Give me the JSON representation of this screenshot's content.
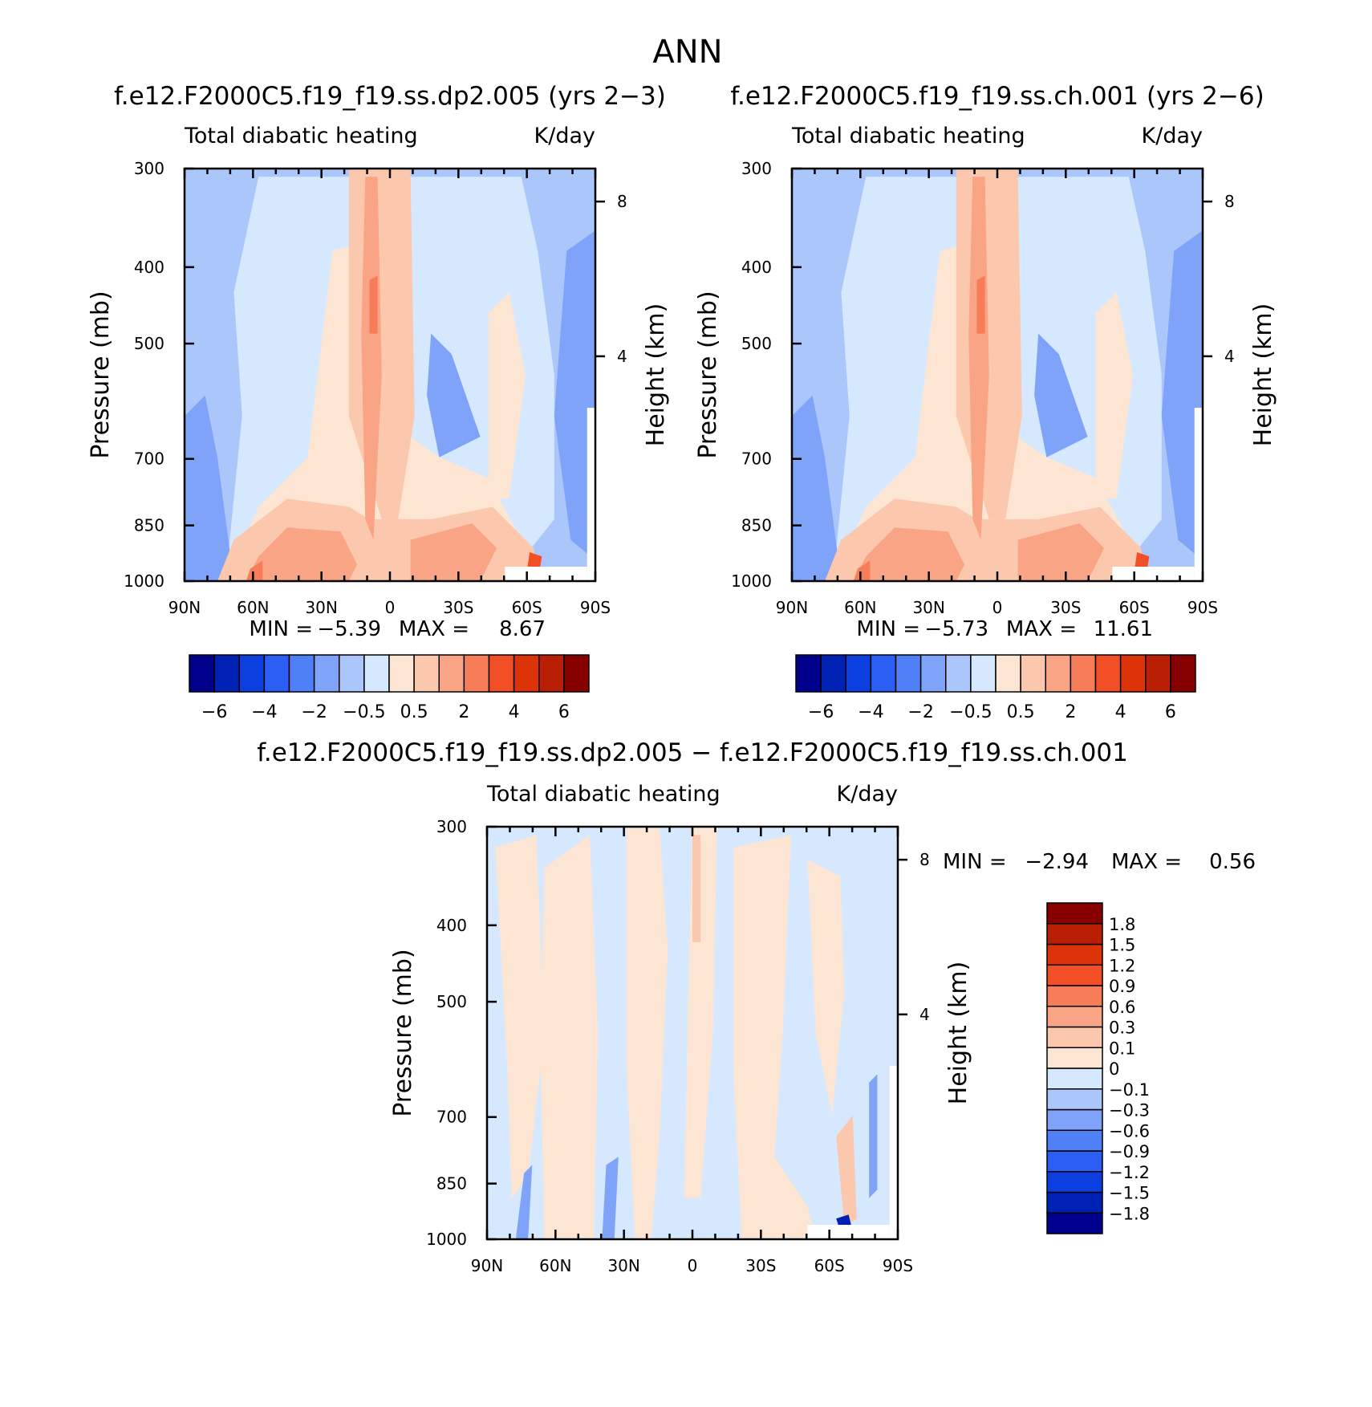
{
  "page_title": "ANN",
  "chart_data": [
    {
      "type": "heatmap",
      "title": "f.e12.F2000C5.f19_f19.ss.dp2.005 (yrs 2−3)",
      "subtitle_left": "Total diabatic heating",
      "subtitle_right": "K/day",
      "ylabel": "Pressure (mb)",
      "ylabel_right": "Height (km)",
      "y_ticks": [
        "300",
        "400",
        "500",
        "700",
        "850",
        "1000"
      ],
      "y_tick_values": [
        300,
        400,
        500,
        700,
        850,
        1000
      ],
      "y_right_ticks": [
        "8",
        "4"
      ],
      "y_right_values": [
        8,
        4
      ],
      "x_ticks": [
        "90N",
        "60N",
        "30N",
        "0",
        "30S",
        "60S",
        "90S"
      ],
      "x_tick_values": [
        90,
        60,
        30,
        0,
        -30,
        -60,
        -90
      ],
      "ylim": [
        300,
        1000
      ],
      "xlim": [
        90,
        -90
      ],
      "min_label": "MIN =",
      "min_value": "−5.39",
      "max_label": "MAX =",
      "max_value": "8.67",
      "colorbar": {
        "orientation": "horizontal",
        "colors": [
          "#00008c",
          "#0022b4",
          "#0b3fe0",
          "#2a5ef5",
          "#4f80f7",
          "#7ea3f9",
          "#aac6fb",
          "#d6e8fd",
          "#fde5d4",
          "#fbc8ae",
          "#f9a585",
          "#f77c58",
          "#f34f26",
          "#dd3309",
          "#b81f05",
          "#870000"
        ],
        "tick_labels": [
          "−6",
          "−4",
          "−2",
          "−0.5",
          "0.5",
          "2",
          "4",
          "6"
        ]
      }
    },
    {
      "type": "heatmap",
      "title": "f.e12.F2000C5.f19_f19.ss.ch.001 (yrs 2−6)",
      "subtitle_left": "Total diabatic heating",
      "subtitle_right": "K/day",
      "ylabel": "Pressure (mb)",
      "ylabel_right": "Height (km)",
      "y_ticks": [
        "300",
        "400",
        "500",
        "700",
        "850",
        "1000"
      ],
      "y_tick_values": [
        300,
        400,
        500,
        700,
        850,
        1000
      ],
      "y_right_ticks": [
        "8",
        "4"
      ],
      "y_right_values": [
        8,
        4
      ],
      "x_ticks": [
        "90N",
        "60N",
        "30N",
        "0",
        "30S",
        "60S",
        "90S"
      ],
      "x_tick_values": [
        90,
        60,
        30,
        0,
        -30,
        -60,
        -90
      ],
      "ylim": [
        300,
        1000
      ],
      "xlim": [
        90,
        -90
      ],
      "min_label": "MIN =",
      "min_value": "−5.73",
      "max_label": "MAX =",
      "max_value": "11.61",
      "colorbar": {
        "orientation": "horizontal",
        "colors": [
          "#00008c",
          "#0022b4",
          "#0b3fe0",
          "#2a5ef5",
          "#4f80f7",
          "#7ea3f9",
          "#aac6fb",
          "#d6e8fd",
          "#fde5d4",
          "#fbc8ae",
          "#f9a585",
          "#f77c58",
          "#f34f26",
          "#dd3309",
          "#b81f05",
          "#870000"
        ],
        "tick_labels": [
          "−6",
          "−4",
          "−2",
          "−0.5",
          "0.5",
          "2",
          "4",
          "6"
        ]
      }
    },
    {
      "type": "heatmap",
      "title": "f.e12.F2000C5.f19_f19.ss.dp2.005 − f.e12.F2000C5.f19_f19.ss.ch.001",
      "subtitle_left": "Total diabatic heating",
      "subtitle_right": "K/day",
      "ylabel": "Pressure (mb)",
      "ylabel_right": "Height (km)",
      "y_ticks": [
        "300",
        "400",
        "500",
        "700",
        "850",
        "1000"
      ],
      "y_tick_values": [
        300,
        400,
        500,
        700,
        850,
        1000
      ],
      "y_right_ticks": [
        "8",
        "4"
      ],
      "y_right_values": [
        8,
        4
      ],
      "x_ticks": [
        "90N",
        "60N",
        "30N",
        "0",
        "30S",
        "60S",
        "90S"
      ],
      "x_tick_values": [
        90,
        60,
        30,
        0,
        -30,
        -60,
        -90
      ],
      "ylim": [
        300,
        1000
      ],
      "xlim": [
        90,
        -90
      ],
      "min_label": "MIN =",
      "min_value": "−2.94",
      "max_label": "MAX =",
      "max_value": "0.56",
      "colorbar": {
        "orientation": "vertical",
        "colors": [
          "#00008c",
          "#0022b4",
          "#0b3fe0",
          "#2a5ef5",
          "#4f80f7",
          "#7ea3f9",
          "#aac6fb",
          "#d6e8fd",
          "#fde5d4",
          "#fbc8ae",
          "#f9a585",
          "#f77c58",
          "#f34f26",
          "#dd3309",
          "#b81f05",
          "#870000"
        ],
        "tick_labels": [
          "1.8",
          "1.5",
          "1.2",
          "0.9",
          "0.6",
          "0.3",
          "0.1",
          "0",
          "−0.1",
          "−0.3",
          "−0.6",
          "−0.9",
          "−1.2",
          "−1.5",
          "−1.8"
        ]
      }
    }
  ]
}
